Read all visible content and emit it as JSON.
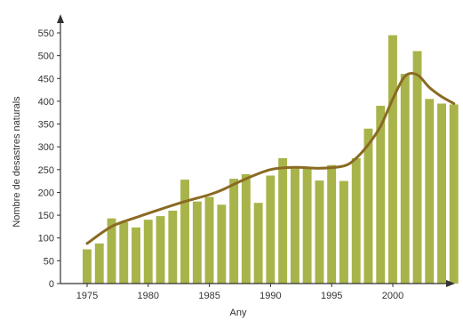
{
  "chart_data": {
    "type": "bar",
    "xlabel": "Any",
    "ylabel": "Nombre de desastres naturals",
    "xlim": [
      1974,
      2009
    ],
    "ylim": [
      0,
      570
    ],
    "x_ticks": [
      "1975",
      "1980",
      "1985",
      "1990",
      "1995",
      "2000"
    ],
    "y_ticks": [
      "0",
      "50",
      "100",
      "150",
      "200",
      "250",
      "300",
      "350",
      "400",
      "450",
      "500",
      "550"
    ],
    "grid": false,
    "bar_color": "#a8b44a",
    "line_color": "#8a6a22",
    "axis_color": "#333333",
    "series": [
      {
        "type": "bar",
        "x": [
          1975,
          1976,
          1977,
          1978,
          1979,
          1980,
          1981,
          1982,
          1983,
          1984,
          1985,
          1986,
          1987,
          1988,
          1989,
          1990,
          1991,
          1992,
          1993,
          1994,
          1995,
          1996,
          1997,
          1998,
          1999,
          2000,
          2001,
          2002,
          2003,
          2004,
          2005
        ],
        "values": [
          75,
          88,
          143,
          135,
          123,
          140,
          148,
          160,
          228,
          180,
          190,
          173,
          230,
          240,
          177,
          237,
          275,
          255,
          255,
          226,
          260,
          225,
          275,
          340,
          390,
          545,
          460,
          510,
          405,
          395,
          393
        ]
      },
      {
        "type": "line",
        "x": [
          1975,
          1977,
          1979,
          1981,
          1983,
          1985,
          1986,
          1988,
          1990,
          1992,
          1994,
          1996,
          1997,
          1998,
          1999,
          2000,
          2001,
          2002,
          2003,
          2004,
          2005
        ],
        "values": [
          88,
          125,
          145,
          163,
          180,
          195,
          205,
          230,
          250,
          255,
          253,
          258,
          275,
          305,
          345,
          405,
          455,
          458,
          430,
          410,
          395
        ]
      }
    ]
  }
}
